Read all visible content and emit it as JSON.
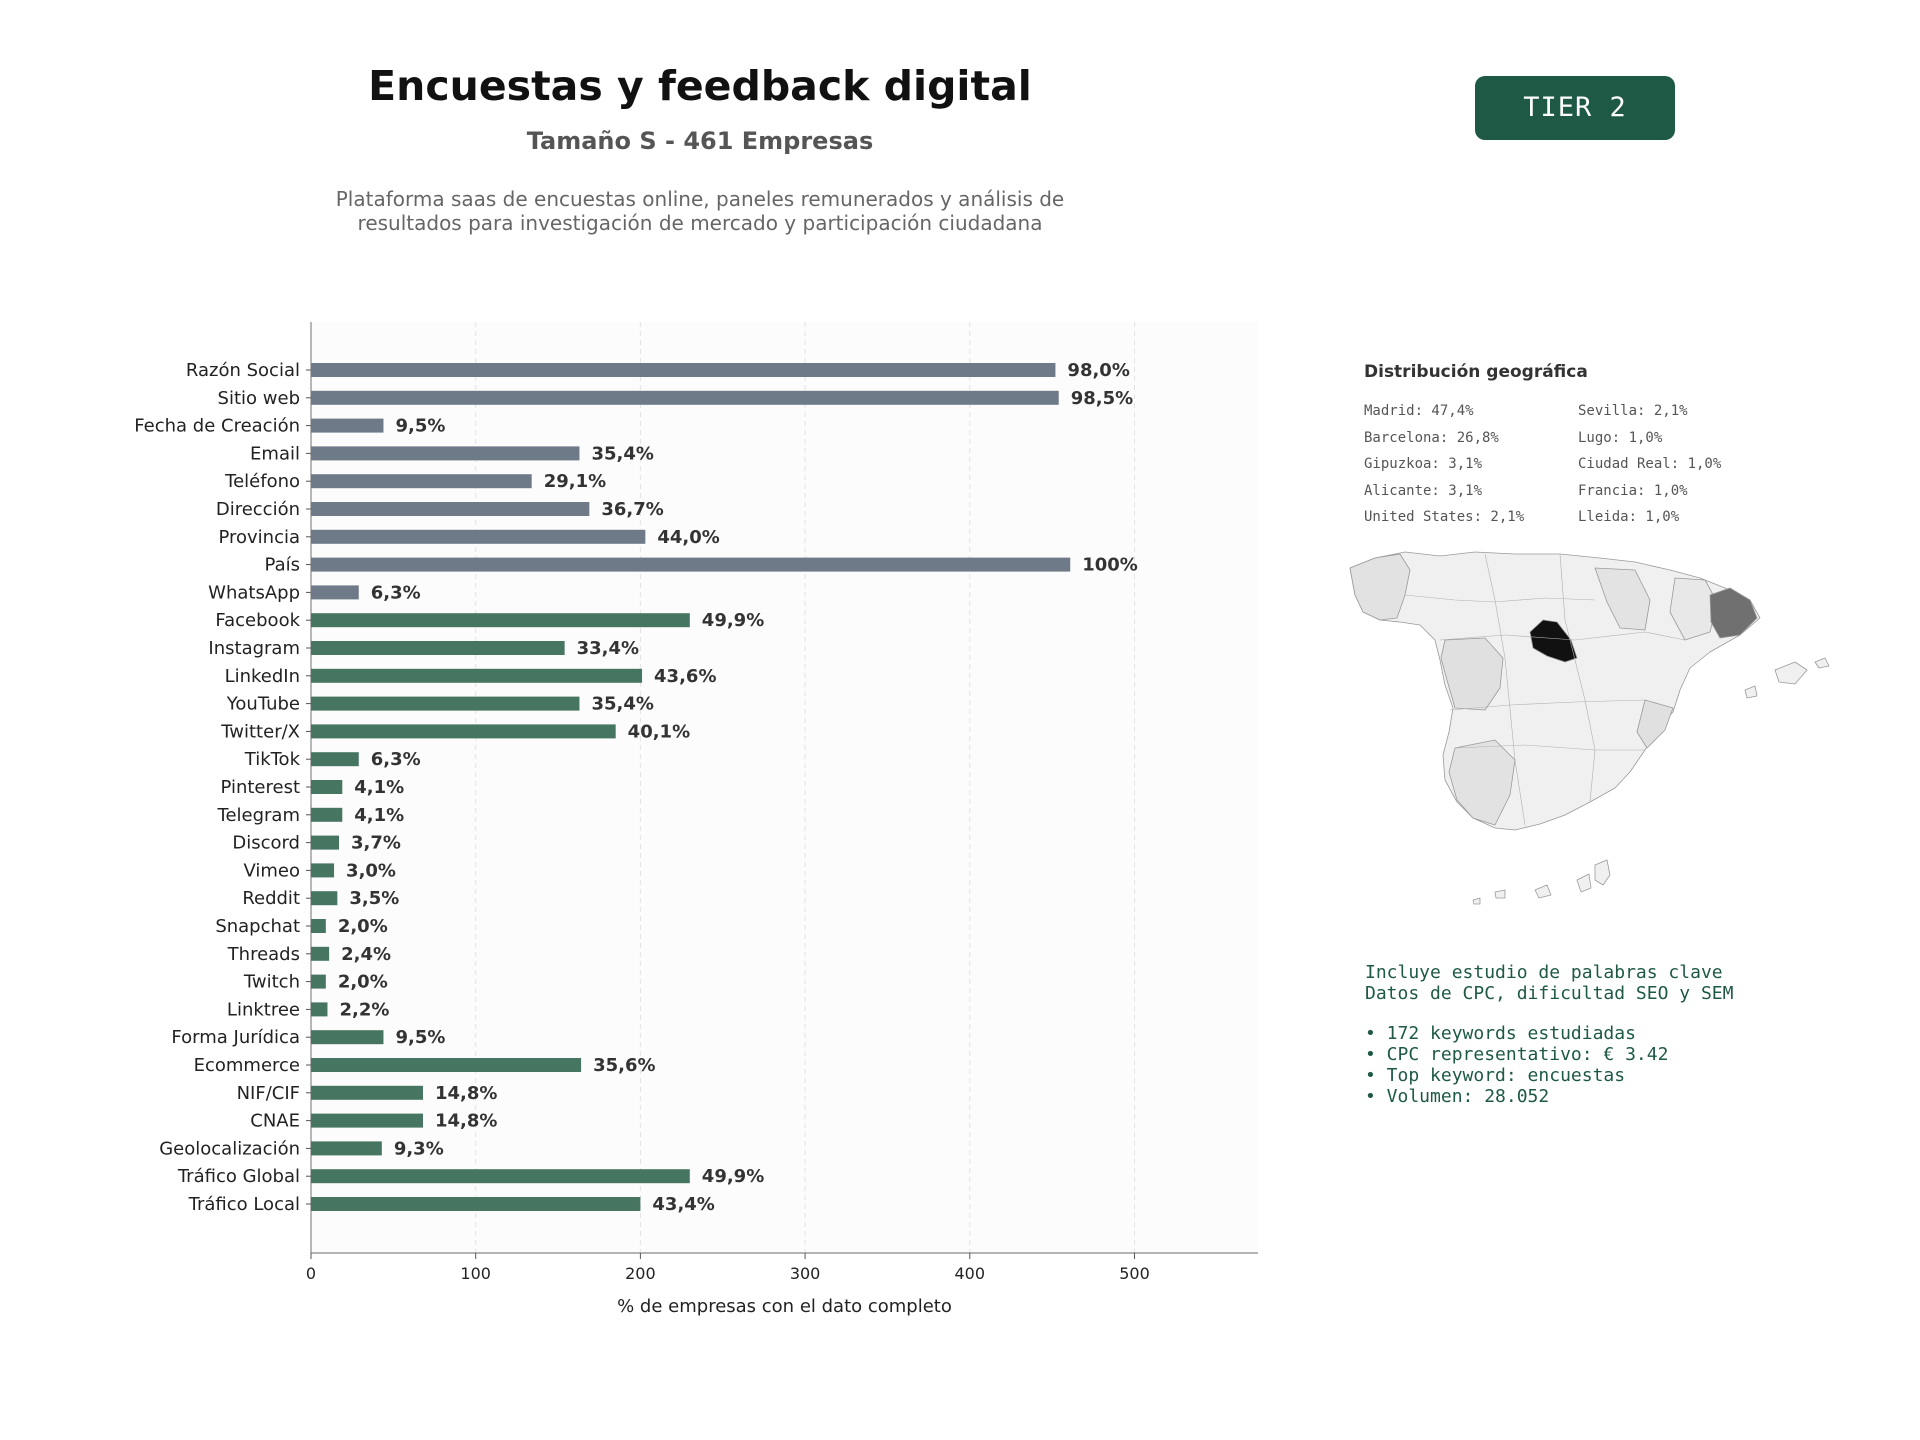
{
  "header": {
    "title": "Encuestas y feedback digital",
    "subtitle": "Tamaño S - 461 Empresas",
    "description_line1": "Plataforma saas de encuestas online, paneles remunerados y análisis de",
    "description_line2": "resultados para investigación de mercado y participación ciudadana",
    "tier_badge": "TIER 2"
  },
  "colors": {
    "gray_bar": "#6e7a87",
    "green_bar": "#467562",
    "badge": "#1d5944"
  },
  "chart_data": {
    "type": "bar",
    "orientation": "horizontal",
    "xlabel": "% de empresas con el dato completo",
    "xlim": [
      0,
      575
    ],
    "xticks": [
      0,
      100,
      200,
      300,
      400,
      500
    ],
    "grid": "vertical dashed",
    "categories": [
      "Razón Social",
      "Sitio web",
      "Fecha de Creación",
      "Email",
      "Teléfono",
      "Dirección",
      "Provincia",
      "País",
      "WhatsApp",
      "Facebook",
      "Instagram",
      "LinkedIn",
      "YouTube",
      "Twitter/X",
      "TikTok",
      "Pinterest",
      "Telegram",
      "Discord",
      "Vimeo",
      "Reddit",
      "Snapchat",
      "Threads",
      "Twitch",
      "Linktree",
      "Forma Jurídica",
      "Ecommerce",
      "NIF/CIF",
      "CNAE",
      "Geolocalización",
      "Tráfico Global",
      "Tráfico Local"
    ],
    "values": [
      452,
      454,
      44,
      163,
      134,
      169,
      203,
      461,
      29,
      230,
      154,
      201,
      163,
      185,
      29,
      19,
      19,
      17,
      14,
      16,
      9,
      11,
      9,
      10,
      44,
      164,
      68,
      68,
      43,
      230,
      200
    ],
    "labels": [
      "98,0%",
      "98,5%",
      "9,5%",
      "35,4%",
      "29,1%",
      "36,7%",
      "44,0%",
      "100%",
      "6,3%",
      "49,9%",
      "33,4%",
      "43,6%",
      "35,4%",
      "40,1%",
      "6,3%",
      "4,1%",
      "4,1%",
      "3,7%",
      "3,0%",
      "3,5%",
      "2,0%",
      "2,4%",
      "2,0%",
      "2,2%",
      "9,5%",
      "35,6%",
      "14,8%",
      "14,8%",
      "9,3%",
      "49,9%",
      "43,4%"
    ],
    "bar_group": [
      "gray",
      "gray",
      "gray",
      "gray",
      "gray",
      "gray",
      "gray",
      "gray",
      "gray",
      "green",
      "green",
      "green",
      "green",
      "green",
      "green",
      "green",
      "green",
      "green",
      "green",
      "green",
      "green",
      "green",
      "green",
      "green",
      "green",
      "green",
      "green",
      "green",
      "green",
      "green",
      "green"
    ]
  },
  "geo": {
    "title": "Distribución geográfica",
    "col1": [
      "Madrid: 47,4%",
      "Barcelona: 26,8%",
      "Gipuzkoa: 3,1%",
      "Alicante: 3,1%",
      "United States: 2,1%"
    ],
    "col2": [
      "Sevilla: 2,1%",
      "Lugo: 1,0%",
      "Ciudad Real: 1,0%",
      "Francia: 1,0%",
      "Lleida: 1,0%"
    ]
  },
  "keywords": {
    "line1": "Incluye estudio de palabras clave",
    "line2": "Datos de CPC, dificultad SEO y SEM",
    "bullet1": "• 172 keywords estudiadas",
    "bullet2": "• CPC representativo: € 3.42",
    "bullet3": "• Top keyword: encuestas",
    "bullet4": "• Volumen: 28.052"
  }
}
